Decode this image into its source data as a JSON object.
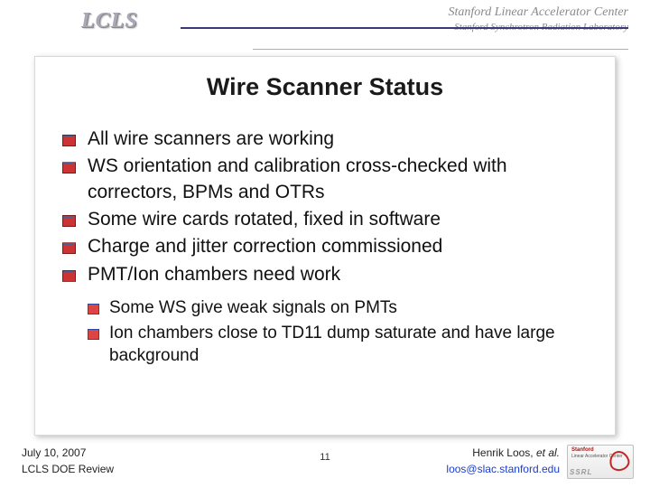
{
  "header": {
    "logo": "LCLS",
    "org_line1": "Stanford Linear Accelerator Center",
    "org_line2": "Stanford Synchrotron Radiation Laboratory"
  },
  "title": "Wire Scanner Status",
  "bullets": [
    "All wire scanners are working",
    "WS orientation and calibration cross-checked with correctors, BPMs and OTRs",
    "Some wire cards rotated, fixed in software",
    "Charge and jitter correction commissioned",
    "PMT/Ion chambers need work"
  ],
  "sub_bullets": [
    "Some WS give weak signals on PMTs",
    "Ion chambers close to TD11 dump saturate and have large background"
  ],
  "footer": {
    "date": "July 10, 2007",
    "event": "LCLS DOE Review",
    "page": "11",
    "author": "Henrik Loos,",
    "etal": " et al.",
    "email": "loos@slac.stanford.edu",
    "badge_top": "Stanford",
    "badge_mid": "Linear\nAccelerator\nCenter",
    "badge_ssrl": "SSRL"
  },
  "colors": {
    "title": "#1a1a1a",
    "bullet_marker": "#c33",
    "sub_marker_border": "#2a4aa0",
    "email": "#1a3bd4",
    "rule": "#3a3a7a"
  }
}
